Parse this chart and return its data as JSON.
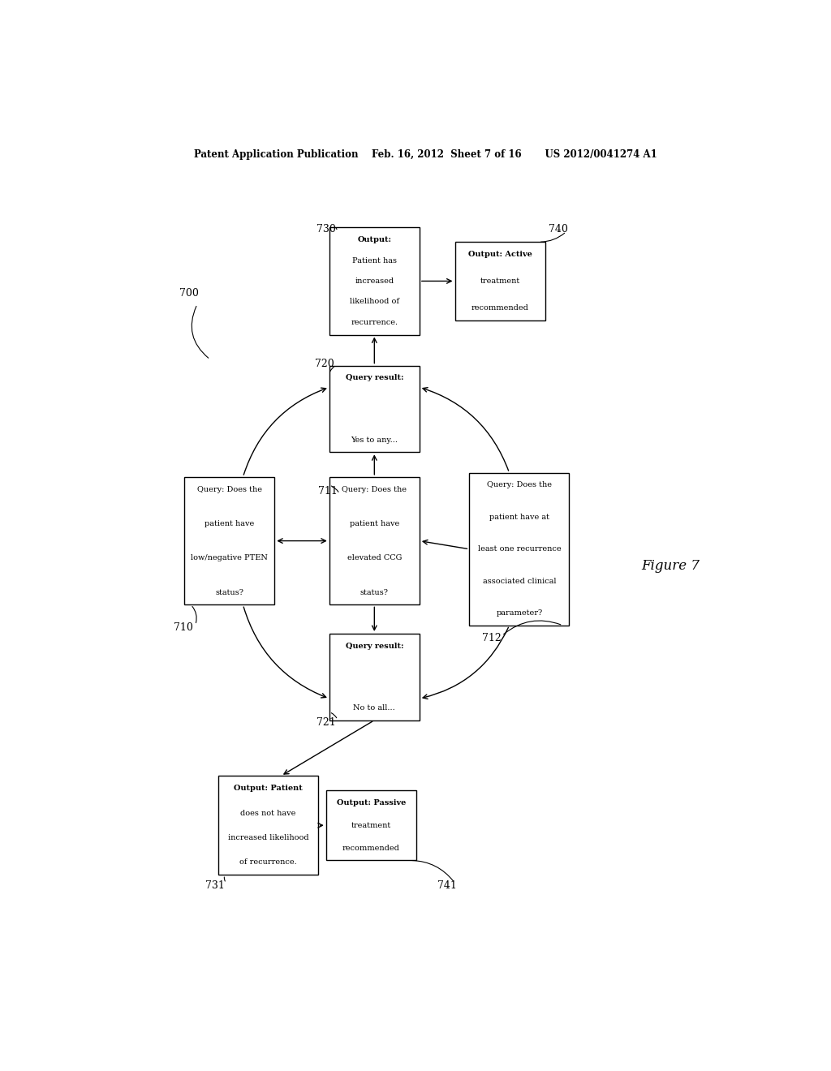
{
  "bg_color": "#ffffff",
  "header_text": "Patent Application Publication    Feb. 16, 2012  Sheet 7 of 16       US 2012/0041274 A1",
  "figure_label": "Figure 7",
  "boxes_coords": {
    "710": [
      0.195,
      0.5,
      0.14,
      0.155
    ],
    "711": [
      0.42,
      0.5,
      0.14,
      0.155
    ],
    "712": [
      0.645,
      0.49,
      0.155,
      0.185
    ],
    "720": [
      0.42,
      0.66,
      0.14,
      0.105
    ],
    "721": [
      0.42,
      0.335,
      0.14,
      0.105
    ],
    "730": [
      0.42,
      0.815,
      0.14,
      0.13
    ],
    "731": [
      0.255,
      0.155,
      0.155,
      0.12
    ],
    "740": [
      0.615,
      0.815,
      0.14,
      0.095
    ],
    "741": [
      0.415,
      0.155,
      0.14,
      0.085
    ]
  },
  "box_texts": {
    "710": [
      [
        "Query: Does the",
        false
      ],
      [
        "patient have",
        false
      ],
      [
        "low/negative PTEN",
        false
      ],
      [
        "status?",
        false
      ]
    ],
    "711": [
      [
        "Query: Does the",
        false
      ],
      [
        "patient have",
        false
      ],
      [
        "elevated CCG",
        false
      ],
      [
        "status?",
        false
      ]
    ],
    "712": [
      [
        "Query: Does the",
        false
      ],
      [
        "patient have at",
        false
      ],
      [
        "least one recurrence",
        false
      ],
      [
        "associated clinical",
        false
      ],
      [
        "parameter?",
        false
      ]
    ],
    "720": [
      [
        "Query result:",
        true
      ],
      [
        "Yes to any...",
        false
      ]
    ],
    "721": [
      [
        "Query result:",
        true
      ],
      [
        "No to all...",
        false
      ]
    ],
    "730": [
      [
        "Output:",
        true
      ],
      [
        "Patient has",
        false
      ],
      [
        "increased",
        false
      ],
      [
        "likelihood of",
        false
      ],
      [
        "recurrence.",
        false
      ]
    ],
    "731": [
      [
        "Output: Patient",
        true
      ],
      [
        "does not have",
        false
      ],
      [
        "increased likelihood",
        false
      ],
      [
        "of recurrence.",
        false
      ]
    ],
    "740": [
      [
        "Output: Active",
        true
      ],
      [
        "treatment",
        false
      ],
      [
        "recommended",
        false
      ]
    ],
    "741": [
      [
        "Output: Passive",
        true
      ],
      [
        "treatment",
        false
      ],
      [
        "recommended",
        false
      ]
    ]
  },
  "label_nums": {
    "710": "710",
    "711": "711",
    "712": "712",
    "720": "720",
    "721": "721",
    "730": "730",
    "731": "731",
    "740": "740",
    "741": "741"
  }
}
